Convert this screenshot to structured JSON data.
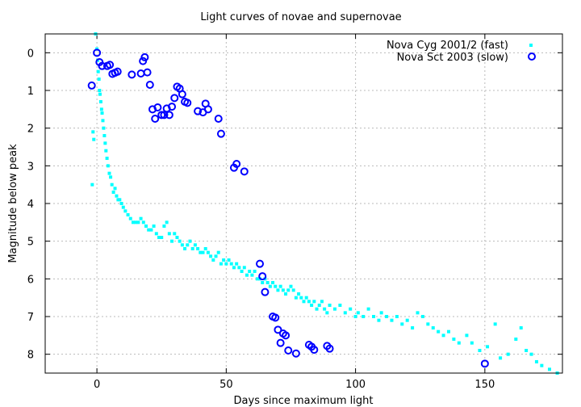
{
  "chart_data": {
    "type": "scatter",
    "title": "Light curves of novae and supernovae",
    "xlabel": "Days since maximum light",
    "ylabel": "Magnitude below peak",
    "xlim": [
      -20,
      180
    ],
    "ylim": [
      8.5,
      -0.5
    ],
    "y_inverted": true,
    "x_ticks": [
      0,
      50,
      100,
      150
    ],
    "y_ticks": [
      0,
      1,
      2,
      3,
      4,
      5,
      6,
      7,
      8
    ],
    "grid": true,
    "legend": "top-right",
    "series": [
      {
        "name": "Nova Cyg 2001/2 (fast)",
        "marker": "small-square",
        "color": "#00ffff",
        "points": [
          [
            -1.8,
            3.5
          ],
          [
            -1.5,
            2.1
          ],
          [
            -1.2,
            2.3
          ],
          [
            -0.5,
            -0.5
          ],
          [
            0,
            -0.1
          ],
          [
            0.3,
            0.2
          ],
          [
            0.5,
            0.5
          ],
          [
            0.8,
            0.7
          ],
          [
            1.0,
            1.0
          ],
          [
            1.2,
            1.1
          ],
          [
            1.5,
            1.3
          ],
          [
            1.8,
            1.5
          ],
          [
            2.0,
            1.6
          ],
          [
            2.3,
            1.8
          ],
          [
            2.6,
            2.0
          ],
          [
            2.9,
            2.2
          ],
          [
            3.2,
            2.4
          ],
          [
            3.5,
            2.6
          ],
          [
            3.9,
            2.8
          ],
          [
            4.3,
            3.0
          ],
          [
            4.8,
            3.2
          ],
          [
            5.3,
            3.3
          ],
          [
            5.8,
            3.5
          ],
          [
            6.4,
            3.7
          ],
          [
            7.0,
            3.6
          ],
          [
            7.6,
            3.8
          ],
          [
            8.2,
            3.9
          ],
          [
            8.8,
            3.9
          ],
          [
            9.5,
            4.0
          ],
          [
            10.2,
            4.1
          ],
          [
            11,
            4.2
          ],
          [
            12,
            4.3
          ],
          [
            13,
            4.4
          ],
          [
            14,
            4.5
          ],
          [
            15,
            4.5
          ],
          [
            16,
            4.5
          ],
          [
            17,
            4.4
          ],
          [
            18,
            4.5
          ],
          [
            19,
            4.6
          ],
          [
            20,
            4.7
          ],
          [
            21,
            4.7
          ],
          [
            22,
            4.6
          ],
          [
            23,
            4.8
          ],
          [
            24,
            4.9
          ],
          [
            25,
            4.9
          ],
          [
            26,
            4.6
          ],
          [
            27,
            4.5
          ],
          [
            28,
            4.8
          ],
          [
            29,
            5.0
          ],
          [
            30,
            4.8
          ],
          [
            31,
            4.9
          ],
          [
            32,
            5.0
          ],
          [
            33,
            5.1
          ],
          [
            34,
            5.2
          ],
          [
            35,
            5.1
          ],
          [
            36,
            5.0
          ],
          [
            37,
            5.2
          ],
          [
            38,
            5.1
          ],
          [
            39,
            5.2
          ],
          [
            40,
            5.3
          ],
          [
            41,
            5.3
          ],
          [
            42,
            5.2
          ],
          [
            43,
            5.3
          ],
          [
            44,
            5.4
          ],
          [
            45,
            5.5
          ],
          [
            46,
            5.4
          ],
          [
            47,
            5.3
          ],
          [
            48,
            5.6
          ],
          [
            49,
            5.5
          ],
          [
            50,
            5.6
          ],
          [
            51,
            5.5
          ],
          [
            52,
            5.6
          ],
          [
            53,
            5.7
          ],
          [
            54,
            5.6
          ],
          [
            55,
            5.7
          ],
          [
            56,
            5.8
          ],
          [
            57,
            5.7
          ],
          [
            58,
            5.9
          ],
          [
            59,
            5.8
          ],
          [
            60,
            5.9
          ],
          [
            61,
            5.8
          ],
          [
            62,
            6.0
          ],
          [
            63,
            6.0
          ],
          [
            64,
            6.1
          ],
          [
            65,
            6.0
          ],
          [
            66,
            6.1
          ],
          [
            67,
            6.2
          ],
          [
            68,
            6.1
          ],
          [
            69,
            6.2
          ],
          [
            70,
            6.3
          ],
          [
            71,
            6.2
          ],
          [
            72,
            6.3
          ],
          [
            73,
            6.4
          ],
          [
            74,
            6.3
          ],
          [
            75,
            6.2
          ],
          [
            76,
            6.3
          ],
          [
            77,
            6.5
          ],
          [
            78,
            6.4
          ],
          [
            79,
            6.5
          ],
          [
            80,
            6.6
          ],
          [
            81,
            6.5
          ],
          [
            82,
            6.6
          ],
          [
            83,
            6.7
          ],
          [
            84,
            6.6
          ],
          [
            85,
            6.8
          ],
          [
            86,
            6.7
          ],
          [
            87,
            6.6
          ],
          [
            88,
            6.8
          ],
          [
            89,
            6.9
          ],
          [
            90,
            6.7
          ],
          [
            92,
            6.8
          ],
          [
            94,
            6.7
          ],
          [
            96,
            6.9
          ],
          [
            98,
            6.8
          ],
          [
            100,
            7.0
          ],
          [
            101,
            6.9
          ],
          [
            103,
            7.0
          ],
          [
            105,
            6.8
          ],
          [
            107,
            7.0
          ],
          [
            109,
            7.1
          ],
          [
            110,
            6.9
          ],
          [
            112,
            7.0
          ],
          [
            114,
            7.1
          ],
          [
            116,
            7.0
          ],
          [
            118,
            7.2
          ],
          [
            120,
            7.1
          ],
          [
            122,
            7.3
          ],
          [
            124,
            6.9
          ],
          [
            126,
            7.0
          ],
          [
            128,
            7.2
          ],
          [
            130,
            7.3
          ],
          [
            132,
            7.4
          ],
          [
            134,
            7.5
          ],
          [
            136,
            7.4
          ],
          [
            138,
            7.6
          ],
          [
            140,
            7.7
          ],
          [
            143,
            7.5
          ],
          [
            145,
            7.7
          ],
          [
            148,
            7.9
          ],
          [
            151,
            7.8
          ],
          [
            154,
            7.2
          ],
          [
            156,
            8.1
          ],
          [
            159,
            8.0
          ],
          [
            162,
            7.6
          ],
          [
            164,
            7.3
          ],
          [
            166,
            7.9
          ],
          [
            168,
            8.0
          ],
          [
            170,
            8.2
          ],
          [
            172,
            8.3
          ],
          [
            175,
            8.4
          ],
          [
            178,
            8.5
          ]
        ]
      },
      {
        "name": "Nova Sct 2003 (slow)",
        "marker": "circle",
        "color": "#0000ff",
        "points": [
          [
            -2,
            0.87
          ],
          [
            0,
            0.0
          ],
          [
            1,
            0.25
          ],
          [
            2,
            0.35
          ],
          [
            4,
            0.35
          ],
          [
            5,
            0.32
          ],
          [
            6,
            0.56
          ],
          [
            7,
            0.53
          ],
          [
            8,
            0.5
          ],
          [
            13.5,
            0.58
          ],
          [
            17,
            0.55
          ],
          [
            17.8,
            0.22
          ],
          [
            18.5,
            0.12
          ],
          [
            19.5,
            0.52
          ],
          [
            20.5,
            0.85
          ],
          [
            21.5,
            1.5
          ],
          [
            22.5,
            1.75
          ],
          [
            23.5,
            1.45
          ],
          [
            25,
            1.65
          ],
          [
            26,
            1.65
          ],
          [
            27,
            1.48
          ],
          [
            28,
            1.65
          ],
          [
            29,
            1.43
          ],
          [
            30,
            1.2
          ],
          [
            31,
            0.9
          ],
          [
            32,
            0.95
          ],
          [
            33,
            1.1
          ],
          [
            34,
            1.3
          ],
          [
            35,
            1.33
          ],
          [
            39,
            1.55
          ],
          [
            41,
            1.58
          ],
          [
            42,
            1.35
          ],
          [
            43,
            1.5
          ],
          [
            47,
            1.75
          ],
          [
            48,
            2.15
          ],
          [
            53,
            3.05
          ],
          [
            54,
            2.95
          ],
          [
            57,
            3.15
          ],
          [
            63,
            5.6
          ],
          [
            64,
            5.93
          ],
          [
            65,
            6.35
          ],
          [
            68,
            7.0
          ],
          [
            69,
            7.03
          ],
          [
            70,
            7.35
          ],
          [
            71,
            7.7
          ],
          [
            72,
            7.45
          ],
          [
            73,
            7.5
          ],
          [
            74,
            7.9
          ],
          [
            77,
            7.98
          ],
          [
            82,
            7.75
          ],
          [
            83,
            7.8
          ],
          [
            84,
            7.88
          ],
          [
            89,
            7.78
          ],
          [
            90,
            7.85
          ],
          [
            150,
            8.25
          ]
        ]
      }
    ]
  }
}
